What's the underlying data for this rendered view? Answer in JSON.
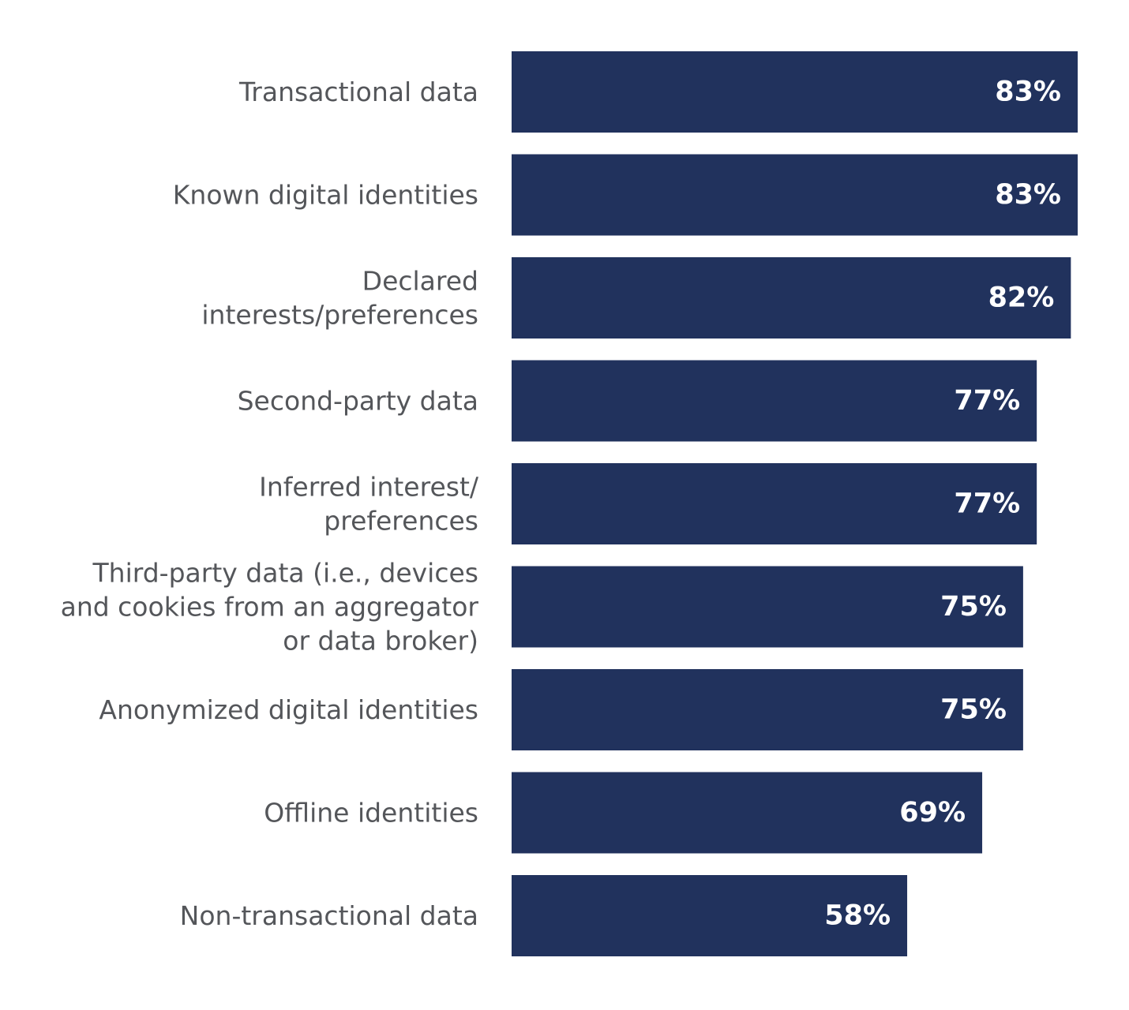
{
  "chart_data": {
    "type": "bar",
    "orientation": "horizontal",
    "categories": [
      [
        "Transactional data"
      ],
      [
        "Known digital identities"
      ],
      [
        "Declared",
        "interests/preferences"
      ],
      [
        "Second-party data"
      ],
      [
        "Inferred interest/",
        "preferences"
      ],
      [
        "Third-party data (i.e., devices",
        "and cookies from an aggregator",
        "or data broker)"
      ],
      [
        "Anonymized digital identities"
      ],
      [
        "Offline identities"
      ],
      [
        "Non-transactional data"
      ]
    ],
    "values": [
      83,
      83,
      82,
      77,
      77,
      75,
      75,
      69,
      58
    ],
    "value_labels": [
      "83%",
      "83%",
      "82%",
      "77%",
      "77%",
      "75%",
      "75%",
      "69%",
      "58%"
    ],
    "xlim": [
      0,
      83
    ],
    "bar_color": "#21325d",
    "label_color": "#54565a",
    "value_label_color": "#ffffff",
    "grid": false,
    "legend": "none"
  }
}
